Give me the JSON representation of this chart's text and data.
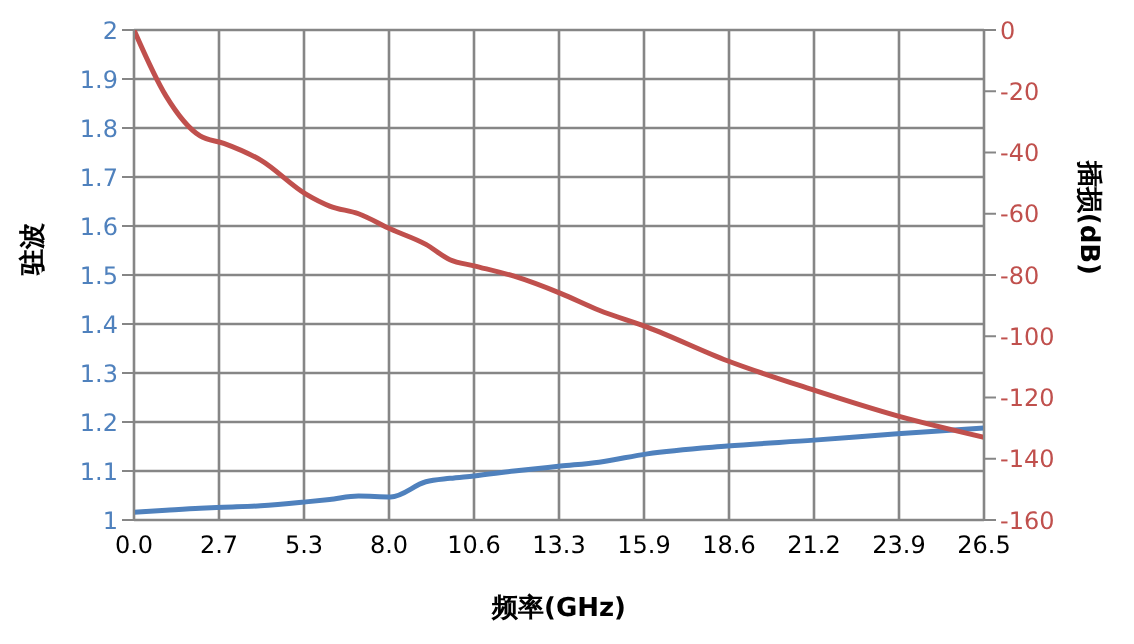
{
  "chart_data": {
    "type": "line",
    "xlabel": "频率(GHz)",
    "ylabel": "驻波",
    "y2label": "插损(dB)",
    "x": [
      0,
      1,
      2.06,
      2.8,
      3.95,
      5.36,
      6.1,
      7.0,
      8.0,
      9.1,
      9.85,
      10.6,
      11.85,
      13.3,
      14.5,
      16.0,
      18.5,
      21.2,
      23.8,
      26.5
    ],
    "series": [
      {
        "color": "#4f81bd",
        "values": [
          1.016,
          1.02,
          1.024,
          1.026,
          1.029,
          1.037,
          1.042,
          1.049,
          1.047,
          1.078,
          1.085,
          1.09,
          1.1,
          1.11,
          1.118,
          1.135,
          1.151,
          1.163,
          1.176,
          1.188
        ]
      },
      {
        "color": "#c0504d",
        "axis": "y2",
        "values": [
          0,
          -21.6,
          -34.6,
          -37,
          -42.5,
          -53.6,
          -57.5,
          -60,
          -65,
          -70,
          -75,
          -77,
          -80.4,
          -86,
          -91.5,
          -97,
          -108,
          -117.6,
          -126,
          -133
        ]
      }
    ],
    "xlim": [
      0,
      26.5
    ],
    "xticks": [
      {
        "value": 0,
        "label": "0.0"
      },
      {
        "value": 2.65,
        "label": "2.7"
      },
      {
        "value": 5.3,
        "label": "5.3"
      },
      {
        "value": 7.95,
        "label": "8.0"
      },
      {
        "value": 10.6,
        "label": "10.6"
      },
      {
        "value": 13.25,
        "label": "13.3"
      },
      {
        "value": 15.9,
        "label": "15.9"
      },
      {
        "value": 18.55,
        "label": "18.6"
      },
      {
        "value": 21.2,
        "label": "21.2"
      },
      {
        "value": 23.85,
        "label": "23.9"
      },
      {
        "value": 26.5,
        "label": "26.5"
      }
    ],
    "ylim": [
      1,
      2
    ],
    "yticks": [
      1,
      1.1,
      1.2,
      1.3,
      1.4,
      1.5,
      1.6,
      1.7,
      1.8,
      1.9,
      2
    ],
    "y2lim": [
      -160,
      0
    ],
    "y2ticks": [
      -160,
      -140,
      -120,
      -100,
      -80,
      -60,
      -40,
      -20,
      0
    ],
    "grid": true,
    "legend": false,
    "marker": "none",
    "line_style": "solid"
  }
}
